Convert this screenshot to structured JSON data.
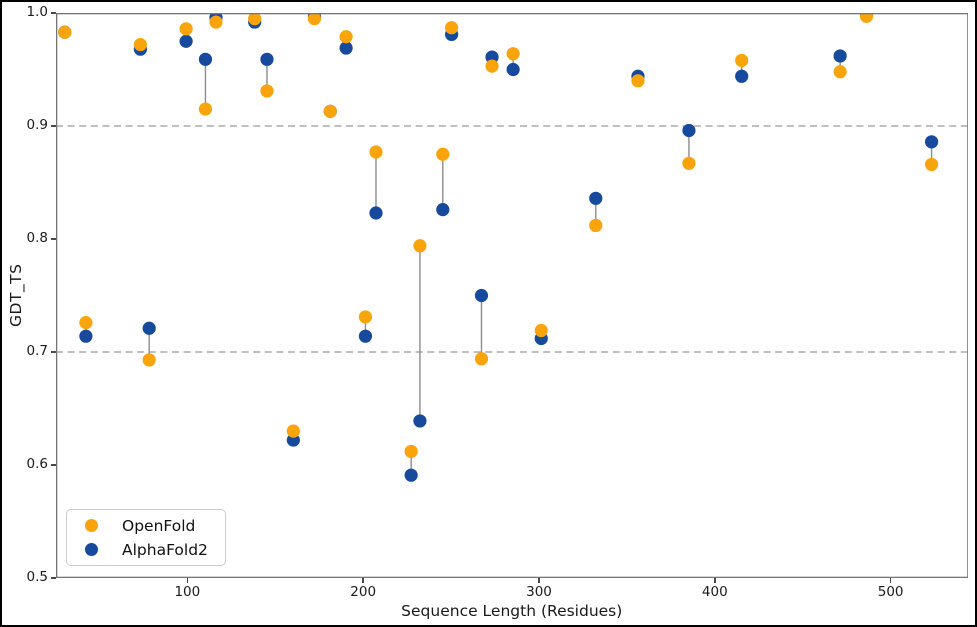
{
  "chart_data": {
    "type": "scatter",
    "title": "",
    "xlabel": "Sequence Length (Residues)",
    "ylabel": "GDT_TS",
    "xlim": [
      25,
      544
    ],
    "ylim": [
      0.5,
      1.0
    ],
    "x_ticks": [
      100,
      200,
      300,
      400,
      500
    ],
    "y_ticks": [
      0.5,
      0.6,
      0.7,
      0.8,
      0.9,
      1.0
    ],
    "grid": "off",
    "reference_lines": [
      {
        "y": 0.9,
        "style": "dashed",
        "color": "#9b9b9b"
      },
      {
        "y": 0.7,
        "style": "dashed",
        "color": "#9b9b9b"
      }
    ],
    "pair_connectors": {
      "enabled": true,
      "color": "#8c8c8c"
    },
    "x": [
      30,
      42,
      73,
      78,
      99,
      110,
      116,
      138,
      145,
      160,
      172,
      181,
      190,
      201,
      207,
      227,
      232,
      245,
      250,
      267,
      273,
      285,
      301,
      332,
      356,
      385,
      415,
      471,
      486,
      523
    ],
    "series": [
      {
        "name": "OpenFold",
        "color": "#F9A40B",
        "values": [
          0.983,
          0.726,
          0.972,
          0.693,
          0.986,
          0.915,
          0.992,
          0.995,
          0.931,
          0.63,
          0.995,
          0.913,
          0.979,
          0.731,
          0.877,
          0.612,
          0.794,
          0.875,
          0.987,
          0.694,
          0.953,
          0.964,
          0.719,
          0.812,
          0.94,
          0.867,
          0.958,
          0.948,
          0.997,
          0.866
        ]
      },
      {
        "name": "AlphaFold2",
        "color": "#17499D",
        "values": [
          0.983,
          0.714,
          0.968,
          0.721,
          0.975,
          0.959,
          0.996,
          0.992,
          0.959,
          0.622,
          0.997,
          0.913,
          0.969,
          0.714,
          0.823,
          0.591,
          0.639,
          0.826,
          0.981,
          0.75,
          0.961,
          0.95,
          0.712,
          0.836,
          0.944,
          0.896,
          0.944,
          0.962,
          0.998,
          0.886
        ]
      }
    ],
    "legend": {
      "position": "lower-left",
      "entries": [
        {
          "label": "OpenFold",
          "color": "#F9A40B"
        },
        {
          "label": "AlphaFold2",
          "color": "#17499D"
        }
      ]
    },
    "marker_radius_px": 6.6,
    "spine_color": "#757575"
  }
}
